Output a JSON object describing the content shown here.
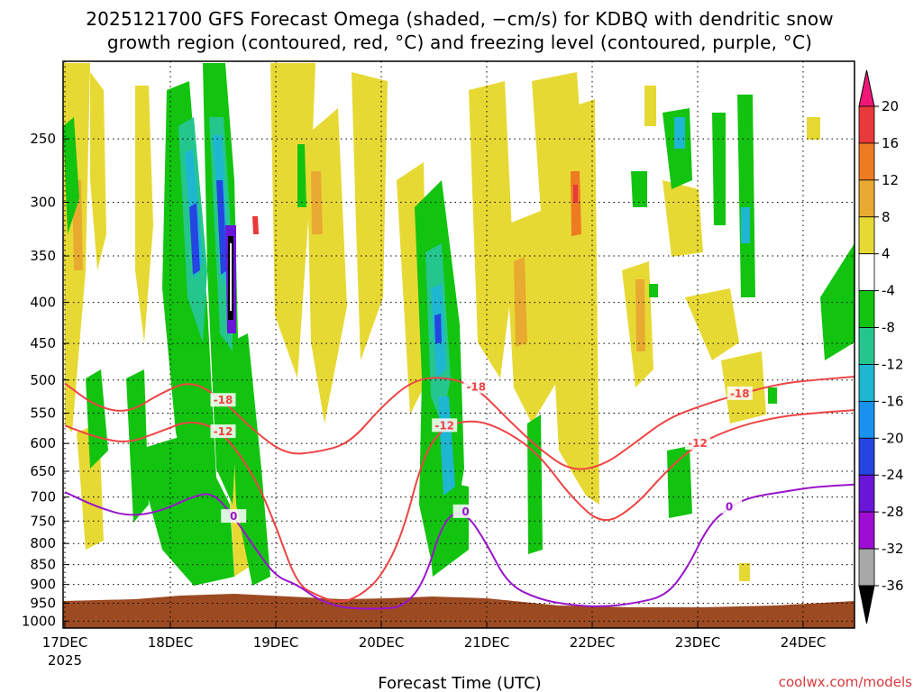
{
  "chart_data": {
    "type": "heatmap",
    "title": [
      "2025121700 GFS Forecast Omega (shaded, −cm/s) for KDBQ with dendritic snow",
      "growth region (contoured, red, °C) and freezing level (contoured, purple, °C)"
    ],
    "xlabel": "Forecast Time (UTC)",
    "credit": "coolwx.com/models",
    "x_ticks": [
      "17DEC",
      "18DEC",
      "19DEC",
      "20DEC",
      "21DEC",
      "22DEC",
      "23DEC",
      "24DEC"
    ],
    "x_year": "2025",
    "y_ticks": [
      250,
      300,
      350,
      400,
      450,
      500,
      550,
      600,
      650,
      700,
      750,
      800,
      850,
      900,
      950,
      1000
    ],
    "y_range_hpa": [
      200,
      1020
    ],
    "y_scale": "log",
    "grid": "dotted",
    "colorbar": {
      "labels": [
        20,
        16,
        12,
        8,
        4,
        -4,
        -8,
        -12,
        -16,
        -20,
        -24,
        -28,
        -32,
        -36
      ],
      "colors": [
        "#f01778",
        "#e83a3a",
        "#ee7b22",
        "#e8aa30",
        "#e7d934",
        "#ffffff",
        "#12c410",
        "#25c68d",
        "#1fb6d2",
        "#1992ef",
        "#2445e2",
        "#6a16d8",
        "#9e0ed2",
        "#a8a8a8",
        "#000000"
      ]
    },
    "series": [
      {
        "name": "-18",
        "color": "#ee4444",
        "x_days": [
          0.0,
          0.3,
          0.6,
          0.9,
          1.2,
          1.5,
          1.8,
          2.1,
          2.4,
          2.7,
          3.0,
          3.3,
          3.6,
          3.9,
          4.2,
          4.5,
          4.8,
          5.1,
          5.4,
          5.7,
          6.0,
          6.4,
          6.8,
          7.1,
          7.5
        ],
        "p_hpa": [
          505,
          540,
          550,
          520,
          500,
          530,
          580,
          620,
          615,
          600,
          540,
          500,
          495,
          510,
          560,
          610,
          650,
          640,
          600,
          560,
          540,
          520,
          505,
          500,
          495
        ]
      },
      {
        "name": "-12",
        "color": "#ee4444",
        "x_days": [
          0.0,
          0.3,
          0.6,
          0.9,
          1.2,
          1.5,
          1.8,
          2.0,
          2.2,
          2.4,
          2.6,
          2.8,
          3.0,
          3.2,
          3.4,
          3.6,
          3.9,
          4.2,
          4.5,
          4.8,
          5.1,
          5.4,
          5.7,
          6.0,
          6.4,
          6.8,
          7.1,
          7.5
        ],
        "p_hpa": [
          570,
          590,
          600,
          580,
          560,
          580,
          660,
          760,
          900,
          930,
          950,
          930,
          880,
          780,
          620,
          570,
          560,
          580,
          620,
          700,
          760,
          720,
          650,
          600,
          570,
          555,
          550,
          545
        ]
      },
      {
        "name": "0",
        "color": "#9a14cc",
        "x_days": [
          0.0,
          0.3,
          0.6,
          0.9,
          1.2,
          1.4,
          1.6,
          1.8,
          2.0,
          2.2,
          2.4,
          2.6,
          2.8,
          3.0,
          3.2,
          3.4,
          3.6,
          3.8,
          4.0,
          4.2,
          4.5,
          4.8,
          5.1,
          5.4,
          5.7,
          5.9,
          6.1,
          6.3,
          6.5,
          6.8,
          7.1,
          7.5
        ],
        "p_hpa": [
          690,
          720,
          740,
          730,
          700,
          690,
          740,
          810,
          880,
          900,
          940,
          960,
          965,
          965,
          960,
          900,
          740,
          730,
          800,
          900,
          940,
          955,
          960,
          950,
          930,
          860,
          760,
          720,
          700,
          690,
          680,
          675
        ]
      }
    ]
  }
}
